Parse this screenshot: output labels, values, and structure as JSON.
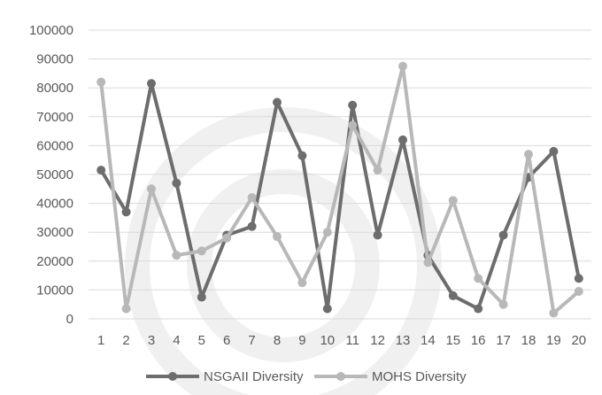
{
  "chart_data": {
    "type": "line",
    "x": [
      1,
      2,
      3,
      4,
      5,
      6,
      7,
      8,
      9,
      10,
      11,
      12,
      13,
      14,
      15,
      16,
      17,
      18,
      19,
      20
    ],
    "x_tick_labels": [
      "1",
      "2",
      "3",
      "4",
      "5",
      "6",
      "7",
      "8",
      "9",
      "10",
      "11",
      "12",
      "13",
      "14",
      "15",
      "16",
      "17",
      "18",
      "19",
      "20"
    ],
    "y_tick_labels": [
      "0",
      "10000",
      "20000",
      "30000",
      "40000",
      "50000",
      "60000",
      "70000",
      "80000",
      "90000",
      "100000"
    ],
    "ylim": [
      0,
      100000
    ],
    "grid": true,
    "legend_position": "bottom",
    "series": [
      {
        "name": "NSGAII Diversity",
        "color": "#6d6d6d",
        "values": [
          51500,
          37000,
          81500,
          47000,
          7500,
          29000,
          32000,
          75000,
          56500,
          3500,
          74000,
          29000,
          62000,
          22000,
          8000,
          3500,
          29000,
          49000,
          58000,
          14000
        ]
      },
      {
        "name": "MOHS Diversity",
        "color": "#b8b8b8",
        "values": [
          82000,
          3500,
          45000,
          22000,
          23500,
          28000,
          42000,
          28500,
          12500,
          30000,
          67000,
          51500,
          87500,
          19500,
          41000,
          14000,
          5000,
          57000,
          2000,
          9500
        ]
      }
    ]
  }
}
